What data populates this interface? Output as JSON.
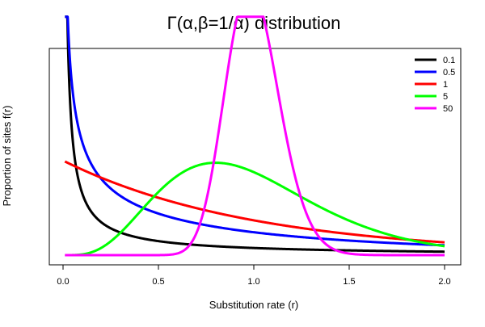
{
  "chart_data": {
    "type": "line",
    "title": "Γ(α,β=1/α) distribution",
    "xlabel": "Substitution rate (r)",
    "ylabel": "Proportion of sites f(r)",
    "xlim": [
      0,
      2
    ],
    "ylim": [
      0,
      2.1
    ],
    "x_ticks": [
      "0.0",
      "0.5",
      "1.0",
      "1.5",
      "2.0"
    ],
    "x_tick_values": [
      0,
      0.5,
      1.0,
      1.5,
      2.0
    ],
    "y_ticks_shown": false,
    "grid": false,
    "legend_position": "top-right",
    "series": [
      {
        "name": "0.1",
        "alpha": 0.1,
        "color": "#000000"
      },
      {
        "name": "0.5",
        "alpha": 0.5,
        "color": "#0000ff"
      },
      {
        "name": "1",
        "alpha": 1,
        "color": "#ff0000"
      },
      {
        "name": "5",
        "alpha": 5,
        "color": "#00ff00"
      },
      {
        "name": "50",
        "alpha": 50,
        "color": "#ff00ff"
      }
    ],
    "x_range_plotted": [
      0.01,
      2.0
    ]
  }
}
